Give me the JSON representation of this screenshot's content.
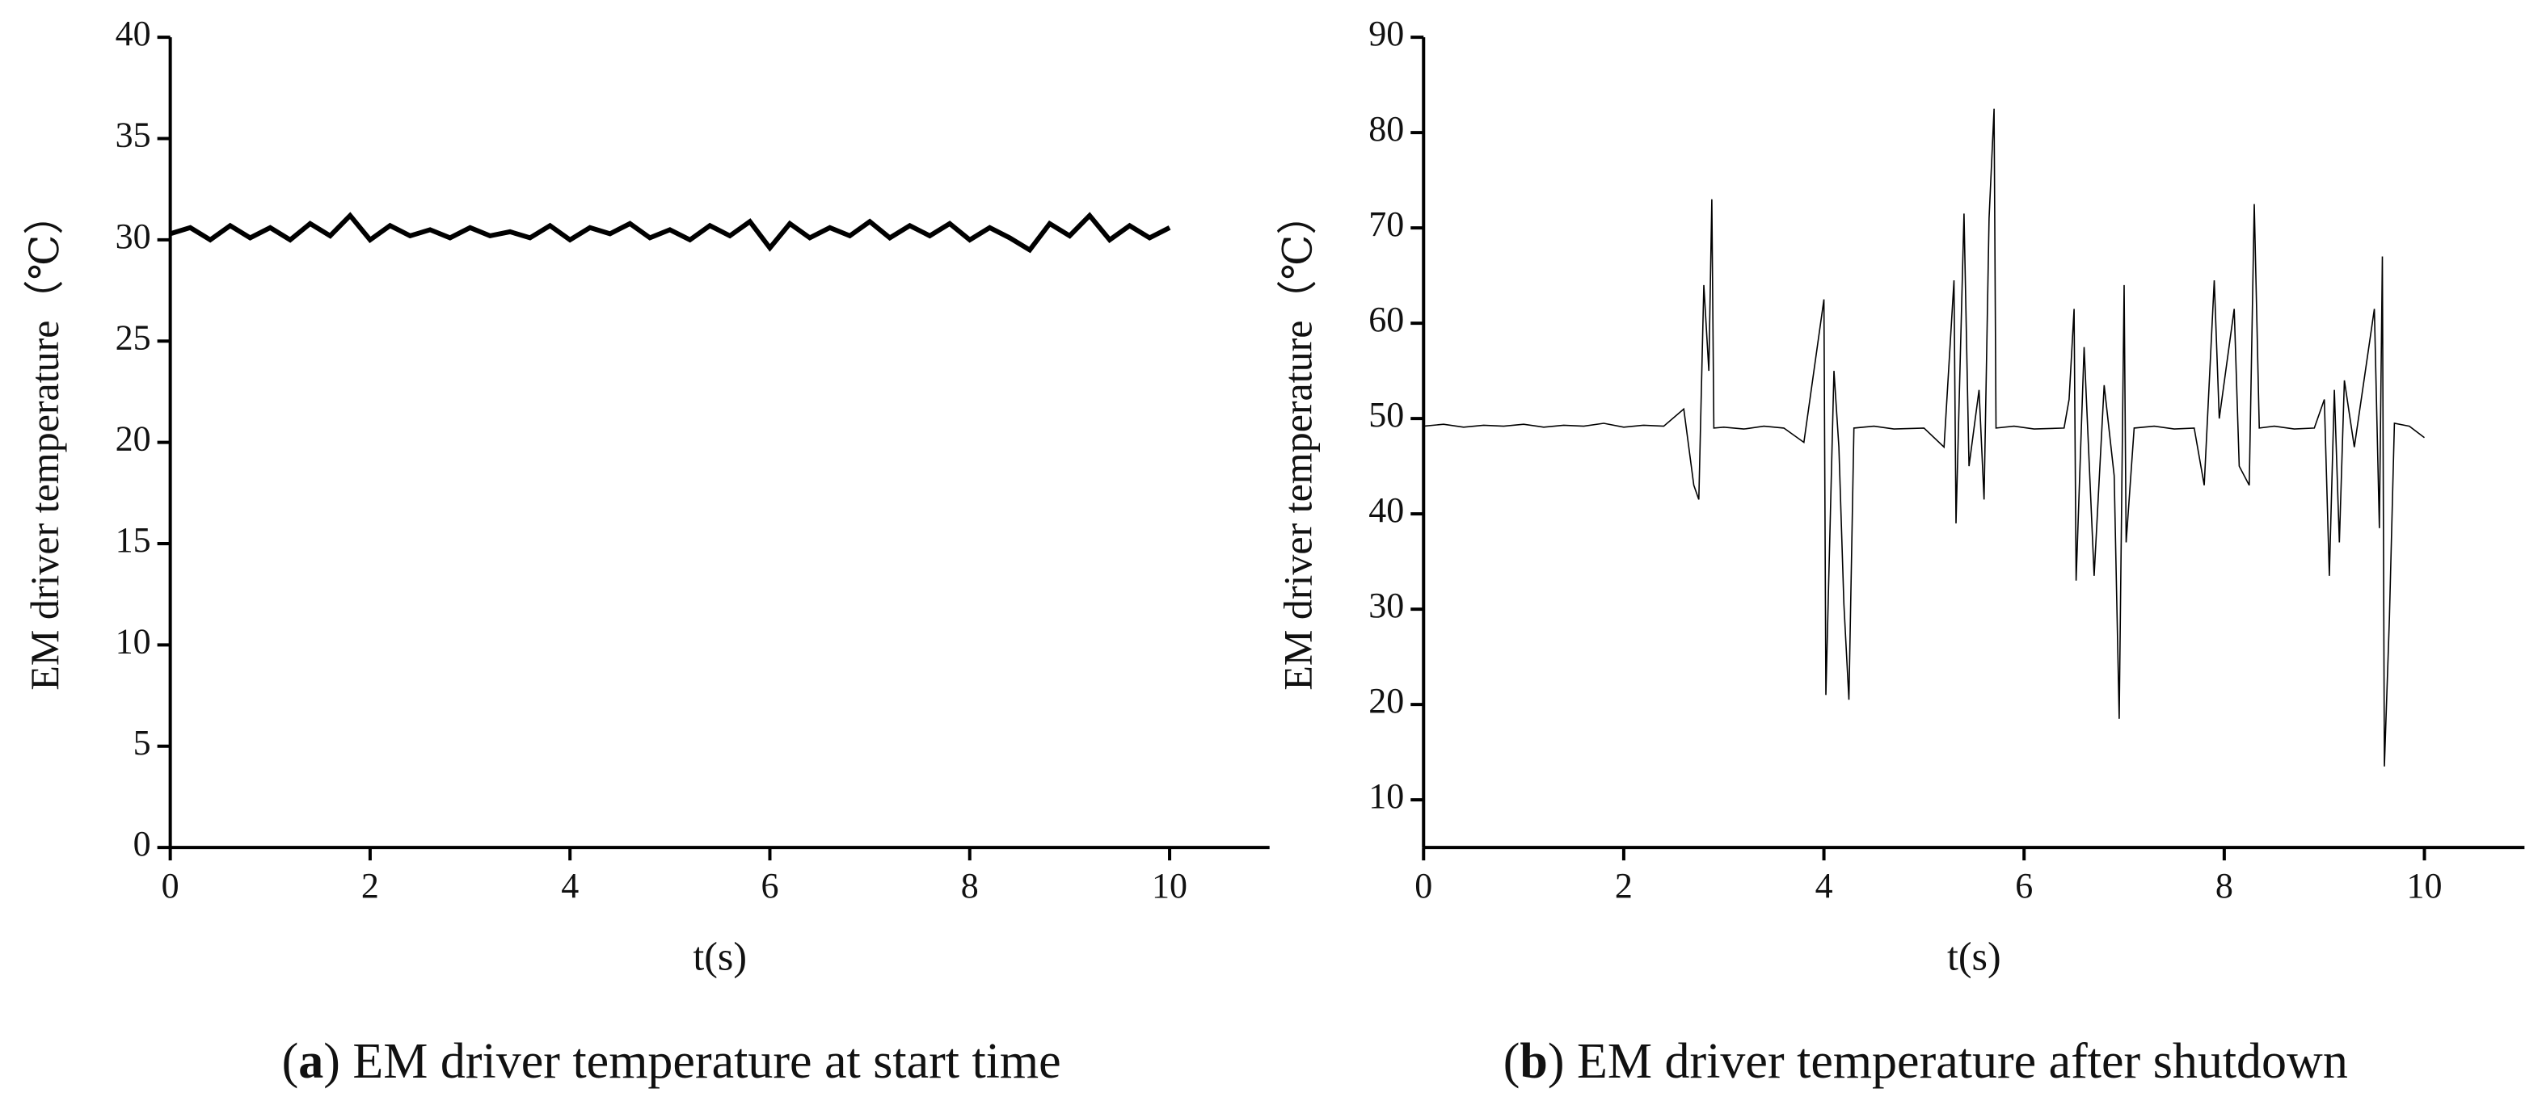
{
  "chart_data": [
    {
      "type": "line",
      "ylabel": "EM driver temperature（℃）",
      "xlabel": "t(s)",
      "caption": [
        "(",
        "a",
        ") EM driver temperature at start time"
      ],
      "xlim": [
        0,
        11
      ],
      "xticks": [
        0,
        2,
        4,
        6,
        8,
        10
      ],
      "ylim": [
        0,
        40
      ],
      "yticks": [
        0,
        5,
        10,
        15,
        20,
        25,
        30,
        35,
        40
      ],
      "series": [
        {
          "color": "#000000",
          "x": [
            0,
            0.2,
            0.4,
            0.6,
            0.8,
            1.0,
            1.2,
            1.4,
            1.6,
            1.8,
            2.0,
            2.2,
            2.4,
            2.6,
            2.8,
            3.0,
            3.2,
            3.4,
            3.6,
            3.8,
            4.0,
            4.2,
            4.4,
            4.6,
            4.8,
            5.0,
            5.2,
            5.4,
            5.6,
            5.8,
            6.0,
            6.2,
            6.4,
            6.6,
            6.8,
            7.0,
            7.2,
            7.4,
            7.6,
            7.8,
            8.0,
            8.2,
            8.4,
            8.6,
            8.8,
            9.0,
            9.2,
            9.4,
            9.6,
            9.8,
            10.0
          ],
          "values": [
            30.3,
            30.6,
            30.0,
            30.7,
            30.1,
            30.6,
            30.0,
            30.8,
            30.2,
            31.2,
            30.0,
            30.7,
            30.2,
            30.5,
            30.1,
            30.6,
            30.2,
            30.4,
            30.1,
            30.7,
            30.0,
            30.6,
            30.3,
            30.8,
            30.1,
            30.5,
            30.0,
            30.7,
            30.2,
            30.9,
            29.6,
            30.8,
            30.1,
            30.6,
            30.2,
            30.9,
            30.1,
            30.7,
            30.2,
            30.8,
            30.0,
            30.6,
            30.1,
            29.5,
            30.8,
            30.2,
            31.2,
            30.0,
            30.7,
            30.1,
            30.6
          ]
        }
      ]
    },
    {
      "type": "line",
      "ylabel": "EM driver temperature（℃）",
      "xlabel": "t(s)",
      "caption": [
        "(",
        "b",
        ") EM driver temperature after shutdown"
      ],
      "xlim": [
        0,
        11
      ],
      "xticks": [
        0,
        2,
        4,
        6,
        8,
        10
      ],
      "ylim": [
        5,
        90
      ],
      "yticks": [
        10,
        20,
        30,
        40,
        50,
        60,
        70,
        80,
        90
      ],
      "series": [
        {
          "color": "#000000",
          "x": [
            0,
            0.2,
            0.4,
            0.6,
            0.8,
            1.0,
            1.2,
            1.4,
            1.6,
            1.8,
            2.0,
            2.2,
            2.4,
            2.6,
            2.7,
            2.75,
            2.8,
            2.85,
            2.88,
            2.9,
            3.0,
            3.2,
            3.4,
            3.6,
            3.8,
            3.9,
            4.0,
            4.02,
            4.1,
            4.15,
            4.2,
            4.25,
            4.3,
            4.5,
            4.7,
            5.0,
            5.2,
            5.3,
            5.32,
            5.4,
            5.45,
            5.55,
            5.6,
            5.65,
            5.7,
            5.72,
            5.9,
            6.1,
            6.4,
            6.45,
            6.5,
            6.52,
            6.6,
            6.7,
            6.8,
            6.9,
            6.95,
            7.0,
            7.02,
            7.1,
            7.3,
            7.5,
            7.7,
            7.8,
            7.9,
            7.95,
            8.1,
            8.15,
            8.25,
            8.3,
            8.35,
            8.5,
            8.7,
            8.9,
            9.0,
            9.05,
            9.1,
            9.15,
            9.2,
            9.3,
            9.5,
            9.55,
            9.58,
            9.6,
            9.65,
            9.7,
            9.85,
            10.0
          ],
          "values": [
            49.2,
            49.4,
            49.1,
            49.3,
            49.2,
            49.4,
            49.1,
            49.3,
            49.2,
            49.5,
            49.1,
            49.3,
            49.2,
            51,
            43,
            41.5,
            64,
            55,
            73,
            49,
            49.1,
            48.9,
            49.2,
            49.0,
            47.5,
            55,
            62.5,
            21,
            55,
            47,
            30.5,
            20.5,
            49,
            49.2,
            48.9,
            49,
            47,
            64.5,
            39,
            71.5,
            45,
            53,
            41.5,
            71,
            82.5,
            49,
            49.2,
            48.9,
            49,
            52,
            61.5,
            33,
            57.5,
            33.5,
            53.5,
            44,
            18.5,
            64,
            37,
            49,
            49.2,
            48.9,
            49,
            43,
            64.5,
            50,
            61.5,
            45,
            43,
            72.5,
            49,
            49.2,
            48.9,
            49,
            52,
            33.5,
            53,
            37,
            54,
            47,
            61.5,
            38.5,
            67,
            13.5,
            29,
            49.5,
            49.2,
            48
          ]
        }
      ]
    }
  ]
}
